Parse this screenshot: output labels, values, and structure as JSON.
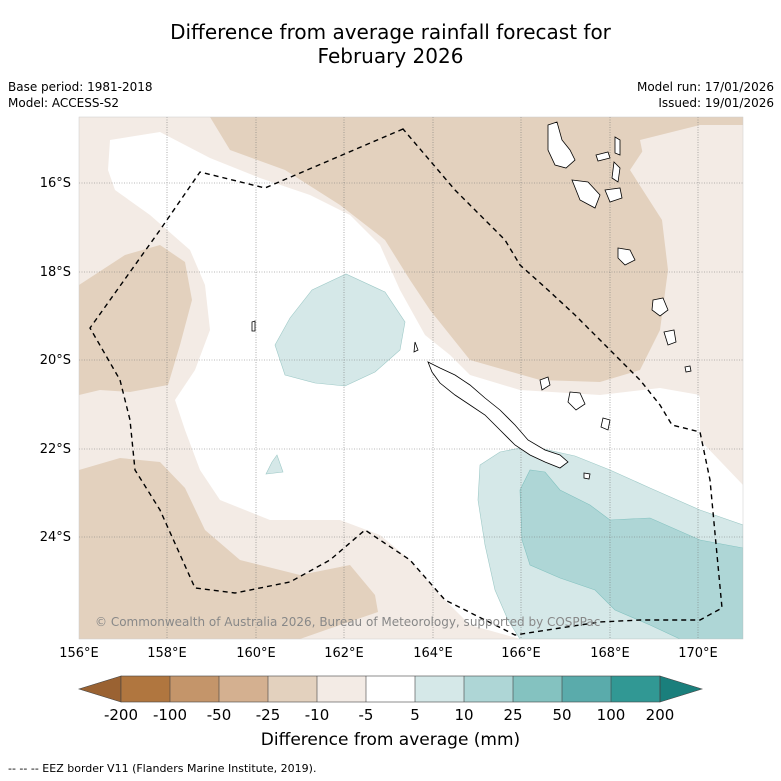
{
  "header": {
    "title_line1": "Difference from average rainfall forecast for",
    "title_line2": "February 2026",
    "base_period": "Base period: 1981-2018",
    "model": "Model: ACCESS-S2",
    "model_run": "Model run: 17/01/2026",
    "issued": "Issued: 19/01/2026"
  },
  "map": {
    "lat_labels": [
      "16°S",
      "18°S",
      "20°S",
      "22°S",
      "24°S"
    ],
    "lon_labels": [
      "156°E",
      "158°E",
      "160°E",
      "162°E",
      "164°E",
      "166°E",
      "168°E",
      "170°E"
    ],
    "copyright": "© Commonwealth of Australia 2026, Bureau of Meteorology, supported by COSPPac",
    "colors": {
      "dry_minus200": "#9a6232",
      "dry_minus100": "#b0763f",
      "dry_minus50": "#c4956a",
      "dry_minus25": "#d4b090",
      "dry_minus10": "#e3d1be",
      "dry_minus5": "#f3ebe5",
      "neutral": "#ffffff",
      "wet_5": "#d5e8e8",
      "wet_10": "#aed6d6",
      "wet_25": "#84c2c0",
      "wet_50": "#5aabab",
      "wet_100": "#319894",
      "wet_200": "#1a7f7c"
    }
  },
  "colorbar": {
    "ticks": [
      "-200",
      "-100",
      "-50",
      "-25",
      "-10",
      "-5",
      "5",
      "10",
      "25",
      "50",
      "100",
      "200"
    ],
    "title": "Difference from average (mm)"
  },
  "footnote": "-- -- -- EEZ border V11 (Flanders Marine Institute, 2019)."
}
